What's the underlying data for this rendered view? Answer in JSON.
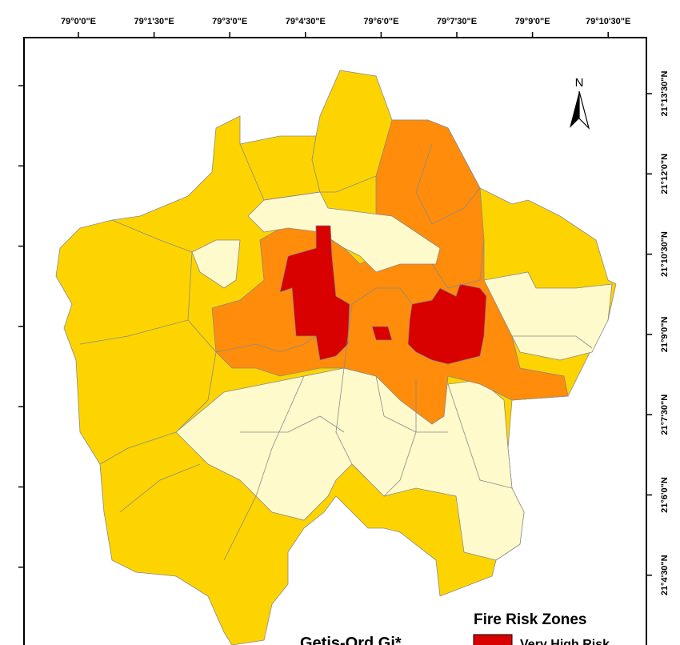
{
  "map": {
    "lon_labels": [
      "79°0'0\"E",
      "79°1'30\"E",
      "79°3'0\"E",
      "79°4'30\"E",
      "79°6'0\"E",
      "79°7'30\"E",
      "79°9'0\"E",
      "79°10'30\"E"
    ],
    "lat_labels": [
      "21°13'30\"N",
      "21°12'0\"N",
      "21°10'30\"N",
      "21°9'0\"N",
      "21°7'30\"N",
      "21°6'0\"N",
      "21°4'30\"N"
    ],
    "north_label": "N",
    "title": "Getis-Ord Gi*",
    "legend": {
      "title": "Fire Risk Zones",
      "items": [
        "Very High Risk"
      ]
    }
  }
}
